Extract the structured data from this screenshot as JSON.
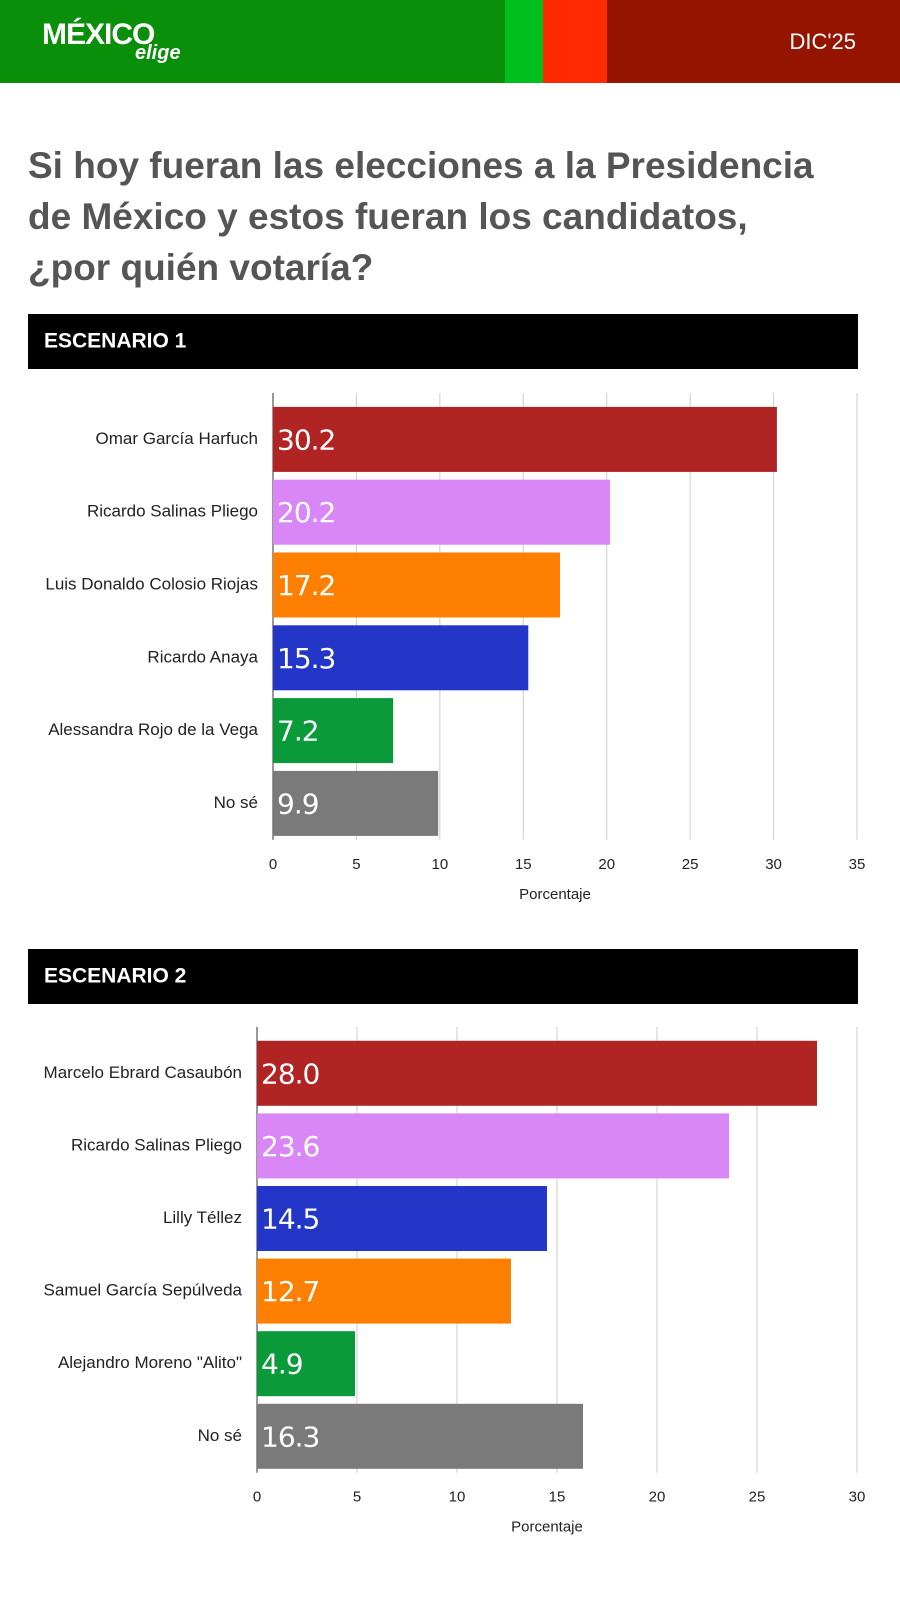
{
  "header": {
    "logo": "MÉXICO",
    "logo_sub": "elige",
    "date": "DIC'25"
  },
  "title": "Si hoy fueran las elecciones a la Presidencia de México y estos fueran los candidatos, ¿por quién votaría?",
  "chart_data": [
    {
      "type": "bar",
      "orientation": "horizontal",
      "title": "ESCENARIO 1",
      "categories": [
        "Omar García Harfuch",
        "Ricardo Salinas Pliego",
        "Luis Donaldo Colosio Riojas",
        "Ricardo Anaya",
        "Alessandra Rojo de la Vega",
        "No sé"
      ],
      "values": [
        30.2,
        20.2,
        17.2,
        15.3,
        7.2,
        9.9
      ],
      "colors": [
        "#b02424",
        "#d986f7",
        "#ff8000",
        "#2336c8",
        "#0a9a3a",
        "#7a7a7a"
      ],
      "xlim": [
        0,
        35
      ],
      "xticks": [
        0,
        5,
        10,
        15,
        20,
        25,
        30,
        35
      ],
      "xlabel": "Porcentaje",
      "grid": true
    },
    {
      "type": "bar",
      "orientation": "horizontal",
      "title": "ESCENARIO 2",
      "categories": [
        "Marcelo Ebrard Casaubón",
        "Ricardo Salinas Pliego",
        "Lilly Téllez",
        "Samuel García Sepúlveda",
        "Alejandro Moreno \"Alito\"",
        "No sé"
      ],
      "values": [
        28,
        23.6,
        14.5,
        12.7,
        4.9,
        16.3
      ],
      "value_labels": [
        "28.0",
        "23.6",
        "14.5",
        "12.7",
        "4.9",
        "16.3"
      ],
      "colors": [
        "#b02424",
        "#d986f7",
        "#2336c8",
        "#ff8000",
        "#0a9a3a",
        "#7a7a7a"
      ],
      "xlim": [
        0,
        30
      ],
      "xticks": [
        0,
        5,
        10,
        15,
        20,
        25,
        30
      ],
      "xlabel": "Porcentaje",
      "grid": true
    }
  ]
}
